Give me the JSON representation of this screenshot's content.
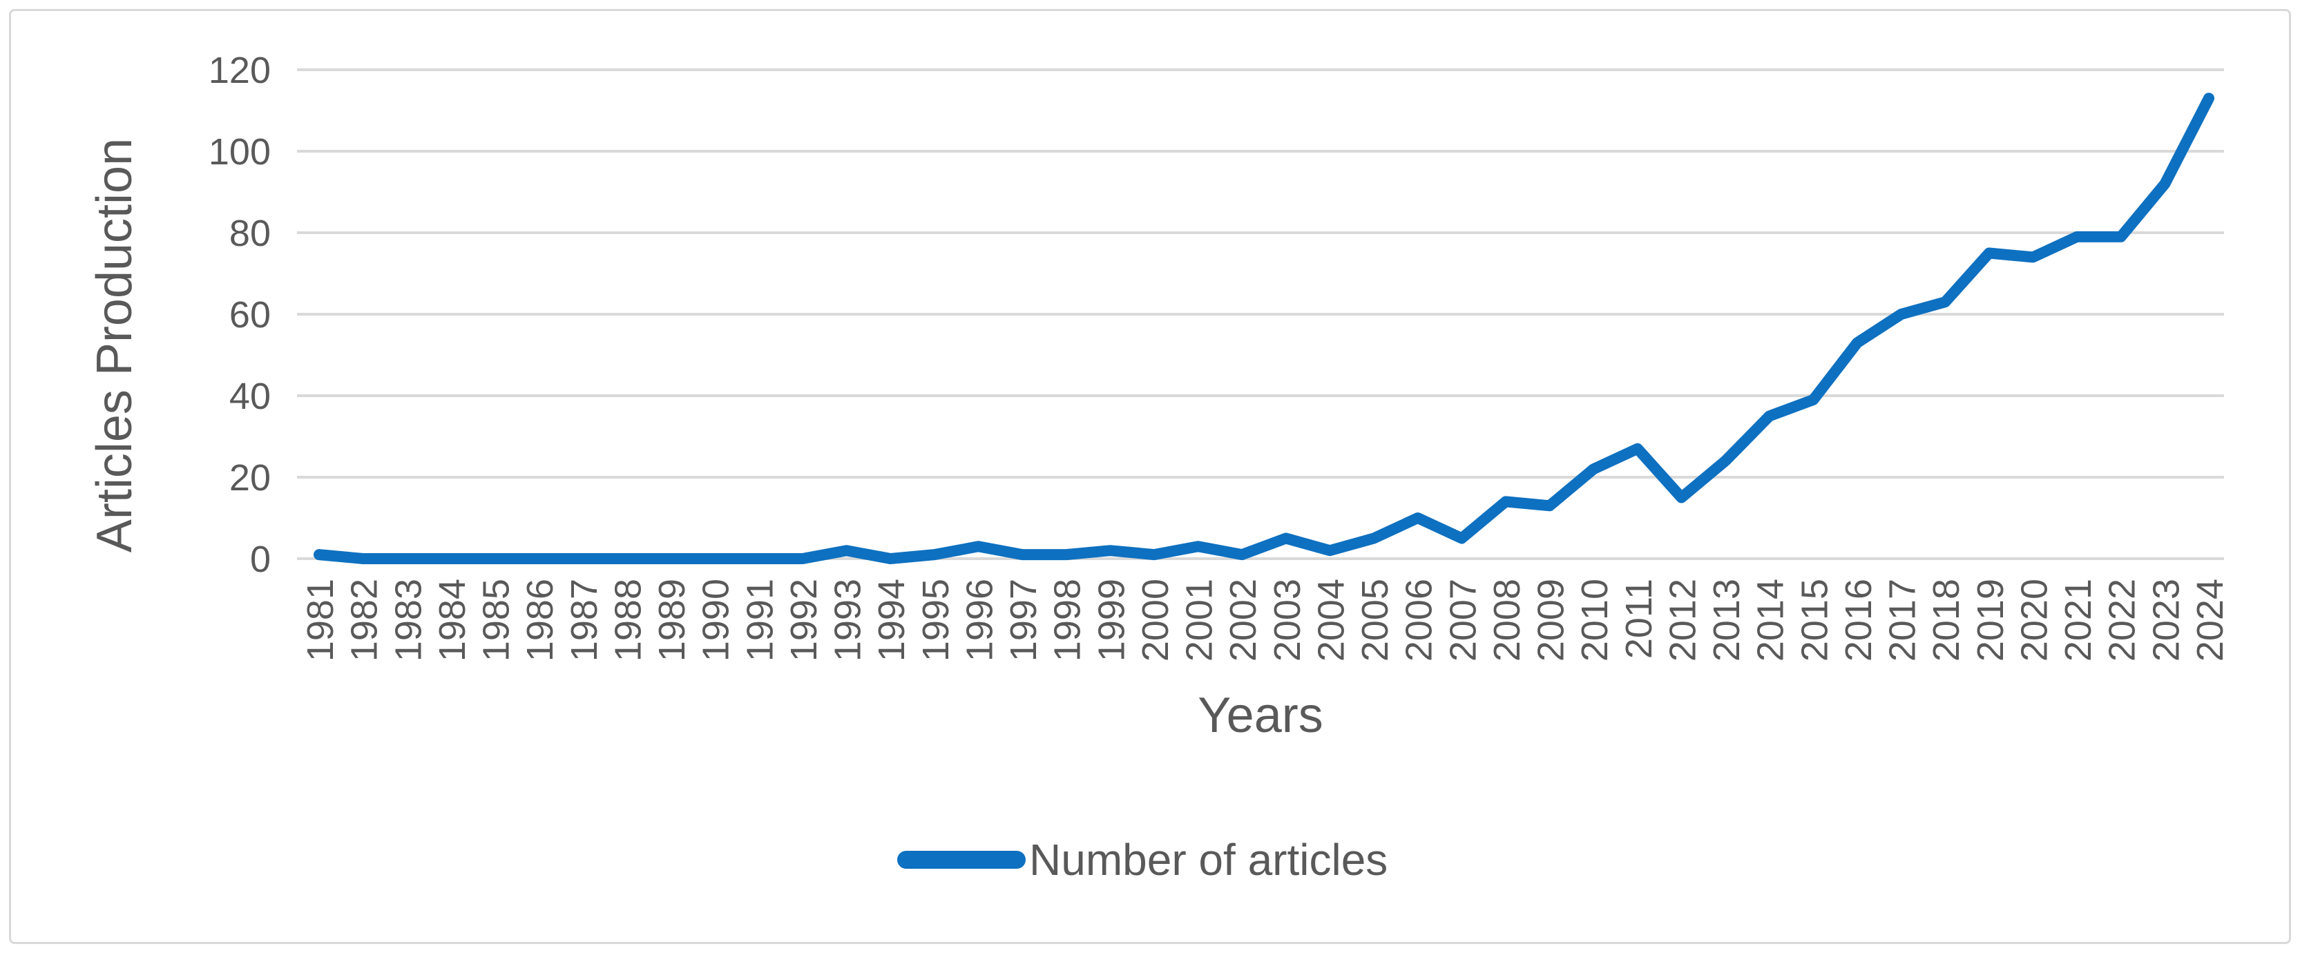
{
  "chart_data": {
    "type": "line",
    "x": [
      1981,
      1982,
      1983,
      1984,
      1985,
      1986,
      1987,
      1988,
      1989,
      1990,
      1991,
      1992,
      1993,
      1994,
      1995,
      1996,
      1997,
      1998,
      1999,
      2000,
      2001,
      2002,
      2003,
      2004,
      2005,
      2006,
      2007,
      2008,
      2009,
      2010,
      2011,
      2012,
      2013,
      2014,
      2015,
      2016,
      2017,
      2018,
      2019,
      2020,
      2021,
      2022,
      2023,
      2024
    ],
    "series": [
      {
        "name": "Number of articles",
        "values": [
          1,
          0,
          0,
          0,
          0,
          0,
          0,
          0,
          0,
          0,
          0,
          0,
          2,
          0,
          1,
          3,
          1,
          1,
          2,
          1,
          3,
          1,
          5,
          2,
          5,
          10,
          5,
          14,
          13,
          22,
          27,
          15,
          24,
          35,
          39,
          53,
          60,
          63,
          75,
          74,
          79,
          79,
          92,
          113
        ]
      }
    ],
    "xlabel": "Years",
    "ylabel": "Articles Production",
    "ylim": [
      0,
      120
    ],
    "yticks": [
      0,
      20,
      40,
      60,
      80,
      100,
      120
    ],
    "grid": true,
    "legend_position": "bottom",
    "colors": {
      "line": "#0e70c0",
      "grid": "#d9d9d9",
      "labels": "#595959",
      "border": "#d9d9d9",
      "background": "#ffffff"
    }
  },
  "axes": {
    "x_title": "Years",
    "y_title": "Articles Production"
  },
  "legend": {
    "label": "Number of articles"
  }
}
